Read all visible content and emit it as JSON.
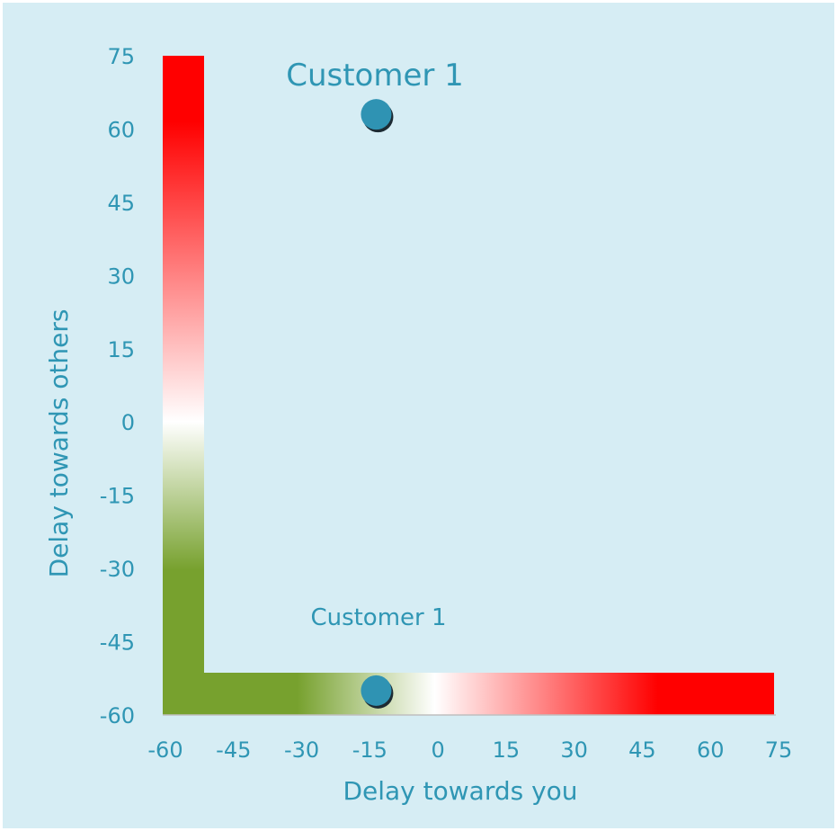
{
  "chart_data": {
    "type": "scatter",
    "xlabel": "Delay towards you",
    "ylabel": "Delay towards others",
    "xlim": [
      -60,
      75
    ],
    "ylim": [
      -60,
      75
    ],
    "x_ticks": [
      -60,
      -45,
      -30,
      -15,
      0,
      15,
      30,
      45,
      60,
      75
    ],
    "y_ticks": [
      75,
      60,
      45,
      30,
      15,
      0,
      -15,
      -30,
      -45,
      -60
    ],
    "x_tick_labels": [
      "-60",
      "-45",
      "-30",
      "-15",
      "0",
      "15",
      "30",
      "45",
      "60",
      "75"
    ],
    "y_tick_labels": [
      "75",
      "60",
      "45",
      "30",
      "15",
      "0",
      "-15",
      "-30",
      "-45",
      "-60"
    ],
    "gradient_colors": {
      "negative": "#77a12e",
      "neutral": "#ffffff",
      "positive": "#ff0000"
    },
    "point_color": "#2f93b3",
    "points": [
      {
        "label": "Customer 1",
        "x": -13,
        "y": 63
      },
      {
        "label": "Customer 1",
        "x": -13,
        "y": -55
      }
    ],
    "grid": false
  }
}
